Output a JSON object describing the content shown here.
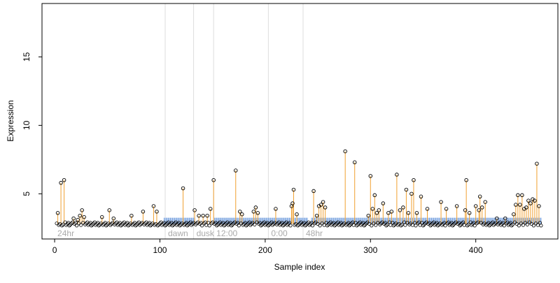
{
  "chart_data": {
    "type": "scatter",
    "title": "",
    "xlabel": "Sample index",
    "ylabel": "Expression",
    "xlim": [
      -12,
      478
    ],
    "ylim": [
      1.7,
      18.9
    ],
    "x_ticks": [
      0,
      100,
      200,
      300,
      400
    ],
    "y_ticks": [
      5,
      10,
      15
    ],
    "grid": false,
    "legend": "none",
    "baseline": 2.8,
    "colors": {
      "stem": "#f0a030",
      "band": "#7ea6e0",
      "boundary": "#dddddd",
      "segment_label": "#aaaaaa",
      "point_stroke": "#000000",
      "axis": "#000000"
    },
    "segments": [
      {
        "label": "24hr",
        "start": 0,
        "end": 105
      },
      {
        "label": "dawn",
        "start": 105,
        "end": 132
      },
      {
        "label": "dusk",
        "start": 132,
        "end": 151
      },
      {
        "label": "12:00",
        "start": 151,
        "end": 203
      },
      {
        "label": "0:00",
        "start": 203,
        "end": 236
      },
      {
        "label": "48hr",
        "start": 236,
        "end": 462
      }
    ],
    "band_intervals": [
      [
        104,
        133
      ],
      [
        152,
        240
      ],
      [
        244,
        462
      ]
    ],
    "peaks": [
      {
        "x": 3,
        "y": 3.6
      },
      {
        "x": 6,
        "y": 5.8
      },
      {
        "x": 9,
        "y": 6.0
      },
      {
        "x": 18,
        "y": 3.2
      },
      {
        "x": 22,
        "y": 3.1
      },
      {
        "x": 24,
        "y": 3.4
      },
      {
        "x": 26,
        "y": 3.8
      },
      {
        "x": 28,
        "y": 3.3
      },
      {
        "x": 45,
        "y": 3.3
      },
      {
        "x": 52,
        "y": 3.8
      },
      {
        "x": 56,
        "y": 3.2
      },
      {
        "x": 73,
        "y": 3.4
      },
      {
        "x": 84,
        "y": 3.7
      },
      {
        "x": 94,
        "y": 4.1
      },
      {
        "x": 97,
        "y": 3.7
      },
      {
        "x": 122,
        "y": 5.4
      },
      {
        "x": 133,
        "y": 3.8
      },
      {
        "x": 137,
        "y": 3.4
      },
      {
        "x": 141,
        "y": 3.4
      },
      {
        "x": 145,
        "y": 3.4
      },
      {
        "x": 148,
        "y": 3.9
      },
      {
        "x": 151,
        "y": 6.0
      },
      {
        "x": 172,
        "y": 6.7
      },
      {
        "x": 176,
        "y": 3.7
      },
      {
        "x": 178,
        "y": 3.5
      },
      {
        "x": 189,
        "y": 3.7
      },
      {
        "x": 191,
        "y": 4.0
      },
      {
        "x": 193,
        "y": 3.6
      },
      {
        "x": 210,
        "y": 3.9
      },
      {
        "x": 225,
        "y": 4.1
      },
      {
        "x": 226,
        "y": 4.3
      },
      {
        "x": 227,
        "y": 5.3
      },
      {
        "x": 230,
        "y": 3.5
      },
      {
        "x": 246,
        "y": 5.2
      },
      {
        "x": 249,
        "y": 3.4
      },
      {
        "x": 251,
        "y": 4.1
      },
      {
        "x": 253,
        "y": 4.2
      },
      {
        "x": 255,
        "y": 4.4
      },
      {
        "x": 257,
        "y": 4.0
      },
      {
        "x": 276,
        "y": 8.1
      },
      {
        "x": 285,
        "y": 7.3
      },
      {
        "x": 298,
        "y": 3.4
      },
      {
        "x": 300,
        "y": 6.3
      },
      {
        "x": 302,
        "y": 3.9
      },
      {
        "x": 304,
        "y": 4.9
      },
      {
        "x": 306,
        "y": 3.6
      },
      {
        "x": 308,
        "y": 3.8
      },
      {
        "x": 312,
        "y": 4.3
      },
      {
        "x": 317,
        "y": 3.6
      },
      {
        "x": 320,
        "y": 3.7
      },
      {
        "x": 325,
        "y": 6.4
      },
      {
        "x": 328,
        "y": 3.8
      },
      {
        "x": 331,
        "y": 4.0
      },
      {
        "x": 334,
        "y": 5.3
      },
      {
        "x": 336,
        "y": 3.6
      },
      {
        "x": 339,
        "y": 5.0
      },
      {
        "x": 341,
        "y": 6.0
      },
      {
        "x": 344,
        "y": 3.6
      },
      {
        "x": 348,
        "y": 4.8
      },
      {
        "x": 354,
        "y": 3.9
      },
      {
        "x": 367,
        "y": 4.4
      },
      {
        "x": 372,
        "y": 3.9
      },
      {
        "x": 382,
        "y": 4.1
      },
      {
        "x": 390,
        "y": 3.8
      },
      {
        "x": 391,
        "y": 6.0
      },
      {
        "x": 394,
        "y": 3.6
      },
      {
        "x": 400,
        "y": 4.1
      },
      {
        "x": 403,
        "y": 3.8
      },
      {
        "x": 404,
        "y": 4.8
      },
      {
        "x": 406,
        "y": 4.0
      },
      {
        "x": 409,
        "y": 4.4
      },
      {
        "x": 420,
        "y": 3.2
      },
      {
        "x": 428,
        "y": 3.2
      },
      {
        "x": 436,
        "y": 3.5
      },
      {
        "x": 438,
        "y": 4.2
      },
      {
        "x": 440,
        "y": 4.9
      },
      {
        "x": 442,
        "y": 4.2
      },
      {
        "x": 444,
        "y": 4.9
      },
      {
        "x": 446,
        "y": 3.9
      },
      {
        "x": 448,
        "y": 4.0
      },
      {
        "x": 450,
        "y": 4.5
      },
      {
        "x": 452,
        "y": 4.3
      },
      {
        "x": 454,
        "y": 4.6
      },
      {
        "x": 456,
        "y": 4.5
      },
      {
        "x": 458,
        "y": 7.2
      },
      {
        "x": 460,
        "y": 4.1
      }
    ]
  }
}
